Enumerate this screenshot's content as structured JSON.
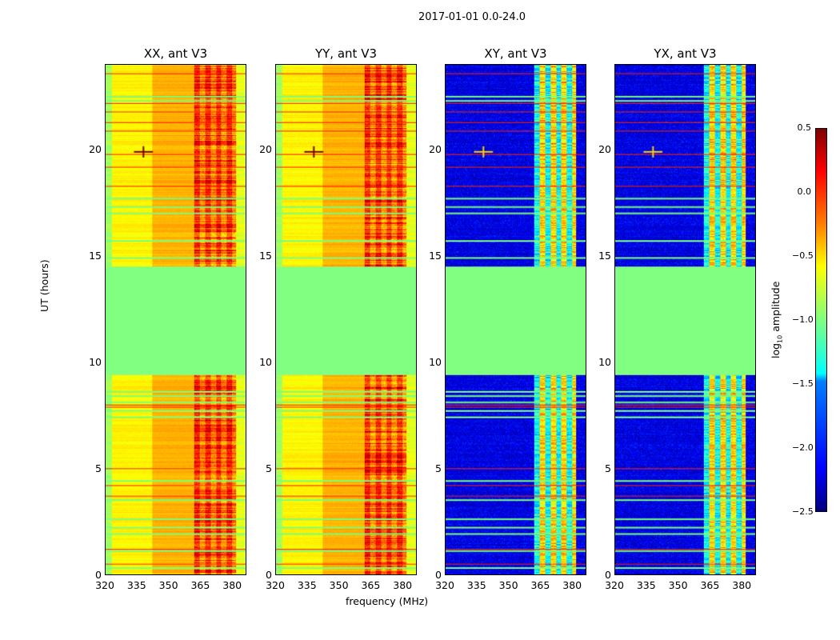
{
  "chart_data": {
    "type": "heatmap",
    "title": "2017-01-01 0.0-24.0",
    "xlabel": "frequency (MHz)",
    "ylabel": "UT (hours)",
    "xlim": [
      320,
      386.7
    ],
    "ylim": [
      0,
      24
    ],
    "xticks": [
      "320",
      "335",
      "350",
      "365",
      "380"
    ],
    "yticks": [
      "0",
      "5",
      "10",
      "15",
      "20"
    ],
    "colorbar": {
      "label_main": "log",
      "label_sub": "10",
      "label_rest": " amplitude",
      "colormap": "jet",
      "vmin": -2.5,
      "vmax": 0.5,
      "ticks": [
        "0.5",
        "0.0",
        "−0.5",
        "−1.0",
        "−1.5",
        "−2.0",
        "−2.5"
      ]
    },
    "flagged_block_hours": [
      9.4,
      14.5
    ],
    "flagged_value": -1.0,
    "flagged_rows_hours": [
      0.3,
      1.1,
      1.9,
      2.2,
      2.6,
      3.5,
      4.4,
      7.4,
      7.7,
      8.1,
      8.4,
      8.6,
      14.9,
      15.7,
      17.0,
      17.3,
      17.7,
      22.3,
      22.5
    ],
    "red_rows_hours": [
      0.5,
      1.2,
      3.7,
      4.2,
      5.0,
      7.9,
      8.0,
      18.3,
      19.2,
      19.8,
      20.9,
      21.3,
      21.8,
      22.2,
      23.6
    ],
    "rfi_spike": {
      "freq_mhz": 338,
      "hour": 19.9
    },
    "panels": [
      {
        "title": "XX, ant V3",
        "kind": "auto",
        "segments": [
          {
            "f": [
              320,
              323
            ],
            "v": -0.9
          },
          {
            "f": [
              323,
              342
            ],
            "v": -0.6
          },
          {
            "f": [
              342,
              362
            ],
            "v": -0.4
          },
          {
            "f": [
              362,
              382
            ],
            "v": -0.1
          },
          {
            "f": [
              382,
              386.7
            ],
            "v": -0.7
          }
        ]
      },
      {
        "title": "YY, ant V3",
        "kind": "auto",
        "segments": [
          {
            "f": [
              320,
              323
            ],
            "v": -0.9
          },
          {
            "f": [
              323,
              342
            ],
            "v": -0.6
          },
          {
            "f": [
              342,
              362
            ],
            "v": -0.4
          },
          {
            "f": [
              362,
              382
            ],
            "v": -0.1
          },
          {
            "f": [
              382,
              386.7
            ],
            "v": -0.7
          }
        ]
      },
      {
        "title": "XY, ant V3",
        "kind": "cross",
        "segments": [
          {
            "f": [
              320,
              362
            ],
            "v": -2.2
          },
          {
            "f": [
              362,
              382
            ],
            "v": -1.2
          },
          {
            "f": [
              382,
              386.7
            ],
            "v": -2.2
          }
        ]
      },
      {
        "title": "YX, ant V3",
        "kind": "cross",
        "segments": [
          {
            "f": [
              320,
              362
            ],
            "v": -2.2
          },
          {
            "f": [
              362,
              382
            ],
            "v": -1.2
          },
          {
            "f": [
              382,
              386.7
            ],
            "v": -2.2
          }
        ]
      }
    ]
  }
}
